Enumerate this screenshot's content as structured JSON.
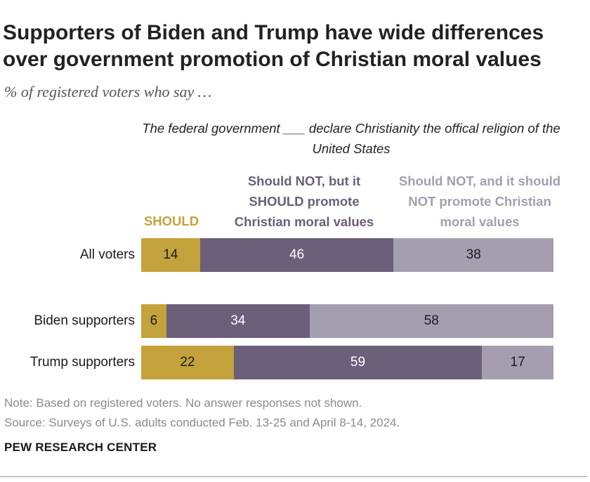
{
  "title": "Supporters of Biden and Trump have wide differences over government promotion of Christian moral values",
  "subtitle": "% of registered voters who say …",
  "chart_data": {
    "type": "bar",
    "orientation": "horizontal",
    "stacked": true,
    "header": "The federal government ___ declare Christianity the offical religion of the United States",
    "categories": [
      "All voters",
      "Biden supporters",
      "Trump supporters"
    ],
    "series": [
      {
        "name": "SHOULD",
        "color": "#c4a23b",
        "text_color": "#1a1a1a",
        "label_color": "#c4a23b",
        "values": [
          14,
          6,
          22
        ]
      },
      {
        "name": "Should NOT, but it SHOULD promote Christian moral values",
        "color": "#6b5f7a",
        "text_color": "#ffffff",
        "label_color": "#6b5f7a",
        "values": [
          46,
          34,
          59
        ]
      },
      {
        "name": "Should NOT, and it should NOT promote Christian moral values",
        "color": "#a59eb0",
        "text_color": "#1a1a1a",
        "label_color": "#a59eb0",
        "values": [
          38,
          58,
          17
        ]
      }
    ],
    "xlim": [
      0,
      100
    ]
  },
  "footer": {
    "note": "Note: Based on registered voters. No answer responses not shown.",
    "source": "Source: Surveys of U.S. adults conducted Feb. 13-25 and April 8-14, 2024.",
    "brand": "PEW RESEARCH CENTER"
  }
}
